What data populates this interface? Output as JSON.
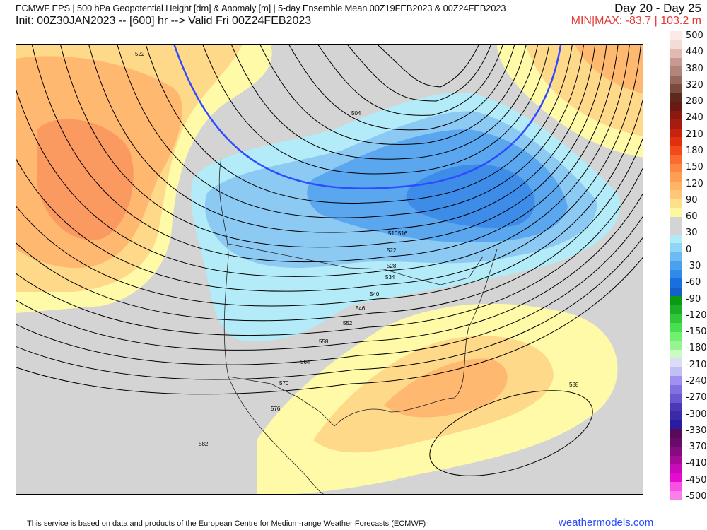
{
  "header": {
    "title": "ECMWF EPS | 500 hPa Geopotential Height [dm] & Anomaly [m] | 5-day Ensemble Mean 00Z19FEB2023 & 00Z24FEB2023",
    "init": "Init: 00Z30JAN2023 -- [600] hr --> Valid Fri 00Z24FEB2023",
    "day_range": "Day 20 - Day 25",
    "minmax": "MIN|MAX: -83.7 | 103.2 m",
    "minmax_color": "#e53935"
  },
  "map": {
    "contour_labels": [
      "522",
      "504",
      "510",
      "516",
      "522",
      "528",
      "534",
      "540",
      "546",
      "552",
      "558",
      "564",
      "570",
      "576",
      "582",
      "588"
    ],
    "highlight_contour": "540",
    "highlight_color": "#2e4bff",
    "anomaly_colors": {
      "pos30": "#fffaa8",
      "pos60": "#ffd98a",
      "pos90": "#ffb870",
      "pos120": "#fa9a60",
      "neg30": "#b3ecf8",
      "neg60": "#8ccaf4",
      "neg90": "#5aa6ef",
      "neg120": "#3d8ce8",
      "zero": "#d4d4d4"
    }
  },
  "colorbar": {
    "labels": [
      "500",
      "440",
      "380",
      "320",
      "280",
      "240",
      "210",
      "180",
      "150",
      "120",
      "90",
      "60",
      "30",
      "0",
      "-30",
      "-60",
      "-90",
      "-120",
      "-150",
      "-180",
      "-210",
      "-240",
      "-270",
      "-300",
      "-330",
      "-370",
      "-410",
      "-450",
      "-500"
    ],
    "colors": [
      "#fbeae6",
      "#f2dcd6",
      "#e2b8b0",
      "#c99890",
      "#b0867c",
      "#96695c",
      "#7a4a3c",
      "#5c2a1c",
      "#6a1a12",
      "#8a1a10",
      "#a81c10",
      "#c8230e",
      "#e2300e",
      "#f24a1a",
      "#fb6a2e",
      "#fb8840",
      "#fd9e55",
      "#ffb468",
      "#ffc878",
      "#ffe08a",
      "#fff6a0",
      "#d4d4d4",
      "#d4d4d4",
      "#b0ecf8",
      "#90d4f6",
      "#6ebaf2",
      "#4aa2ee",
      "#2f8ae8",
      "#1a6ee0",
      "#1460c8",
      "#0a9a16",
      "#1cae26",
      "#30c83a",
      "#48e050",
      "#6ef070",
      "#98f490",
      "#c8fcc4",
      "#dcdcf8",
      "#c0c0f4",
      "#a090f0",
      "#8070e0",
      "#6a58d0",
      "#4a38b8",
      "#3a2aa8",
      "#2a1ca0",
      "#560a58",
      "#6a0a6a",
      "#880a80",
      "#a80a98",
      "#c80ab8",
      "#e80ad0",
      "#f850e0",
      "#f880e8"
    ]
  },
  "footer": {
    "disclaimer": "This service is based on data and products of the European Centre for Medium-range Weather Forecasts (ECMWF)",
    "site": "weathermodels.com"
  }
}
